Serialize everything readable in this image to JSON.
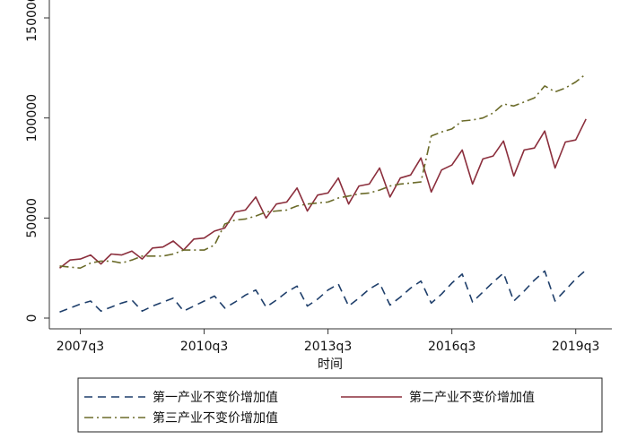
{
  "chart_data": {
    "type": "line",
    "xlabel": "时间",
    "ylabel": "",
    "ylim": [
      0,
      150000
    ],
    "yticks": [
      0,
      50000,
      100000,
      150000
    ],
    "ytick_labels": [
      "0",
      "50000",
      "100000",
      "150000"
    ],
    "x_tick_values": [
      2007.5,
      2010.5,
      2013.5,
      2016.5,
      2019.5
    ],
    "x_tick_labels": [
      "2007q3",
      "2010q3",
      "2013q3",
      "2016q3",
      "2019q3"
    ],
    "xlim": [
      2006.75,
      2020.375
    ],
    "grid": false,
    "legend_position": "bottom",
    "x": [
      2007.0,
      2007.25,
      2007.5,
      2007.75,
      2008.0,
      2008.25,
      2008.5,
      2008.75,
      2009.0,
      2009.25,
      2009.5,
      2009.75,
      2010.0,
      2010.25,
      2010.5,
      2010.75,
      2011.0,
      2011.25,
      2011.5,
      2011.75,
      2012.0,
      2012.25,
      2012.5,
      2012.75,
      2013.0,
      2013.25,
      2013.5,
      2013.75,
      2014.0,
      2014.25,
      2014.5,
      2014.75,
      2015.0,
      2015.25,
      2015.5,
      2015.75,
      2016.0,
      2016.25,
      2016.5,
      2016.75,
      2017.0,
      2017.25,
      2017.5,
      2017.75,
      2018.0,
      2018.25,
      2018.5,
      2018.75,
      2019.0,
      2019.25,
      2019.5,
      2019.75
    ],
    "series": [
      {
        "name": "第一产业不变价增加值",
        "color": "#1f3f6b",
        "dash": "dash",
        "values": [
          3000,
          5000,
          7000,
          8500,
          3500,
          5500,
          7500,
          9000,
          3500,
          6000,
          8000,
          10000,
          3500,
          6000,
          8500,
          11000,
          5000,
          8000,
          11500,
          14000,
          5500,
          9000,
          13000,
          16000,
          6000,
          9500,
          14000,
          17000,
          6000,
          10000,
          14500,
          17500,
          6500,
          10500,
          15000,
          18500,
          7500,
          12000,
          17500,
          22000,
          8000,
          13000,
          18000,
          22500,
          8500,
          13500,
          19000,
          23500,
          8500,
          14000,
          19500,
          24000
        ]
      },
      {
        "name": "第二产业不变价增加值",
        "color": "#8b2e3c",
        "dash": "solid",
        "values": [
          25000,
          29000,
          29500,
          31500,
          27000,
          32000,
          31500,
          33500,
          29500,
          35000,
          35500,
          38500,
          34000,
          39500,
          40000,
          43500,
          45000,
          53000,
          54000,
          60500,
          50000,
          57000,
          58000,
          65000,
          53500,
          61500,
          62500,
          70000,
          57000,
          66000,
          67000,
          75000,
          60500,
          70000,
          71500,
          80000,
          63000,
          74000,
          76500,
          84000,
          67000,
          79500,
          81000,
          88500,
          71000,
          84000,
          85000,
          93500,
          75000,
          88000,
          89000,
          99500
        ]
      },
      {
        "name": "第三产业不变价增加值",
        "color": "#6b6b2a",
        "dash": "dashdot",
        "values": [
          26000,
          25500,
          25000,
          27500,
          28500,
          28500,
          27500,
          29000,
          31000,
          31000,
          31000,
          32000,
          34000,
          34000,
          34000,
          36500,
          47000,
          49000,
          49500,
          51000,
          53000,
          53500,
          54000,
          56000,
          57000,
          57500,
          58000,
          60000,
          61000,
          62000,
          62500,
          64000,
          66000,
          67000,
          67500,
          68000,
          91000,
          93000,
          94500,
          98500,
          99000,
          100000,
          102500,
          107000,
          106000,
          108000,
          110000,
          116000,
          113000,
          115000,
          118000,
          122000
        ]
      }
    ]
  }
}
